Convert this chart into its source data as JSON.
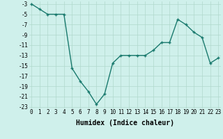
{
  "xlabel": "Humidex (Indice chaleur)",
  "x": [
    0,
    1,
    2,
    3,
    4,
    5,
    6,
    7,
    8,
    9,
    10,
    11,
    12,
    13,
    14,
    15,
    16,
    17,
    18,
    19,
    20,
    21,
    22,
    23
  ],
  "y": [
    -3,
    -4,
    -5,
    -5,
    -5,
    -15.5,
    -18,
    -20,
    -22.5,
    -20.5,
    -14.5,
    -13,
    -13,
    -13,
    -13,
    -12,
    -10.5,
    -10.5,
    -6,
    -7,
    -8.5,
    -9.5,
    -14.5,
    -13.5
  ],
  "line_color": "#1a7a6e",
  "marker": "+",
  "marker_size": 3,
  "background_color": "#cff0eb",
  "grid_color": "#b0d8cc",
  "ylim": [
    -23,
    -3
  ],
  "xlim": [
    0,
    23
  ],
  "yticks": [
    -3,
    -5,
    -7,
    -9,
    -11,
    -13,
    -15,
    -17,
    -19,
    -21,
    -23
  ],
  "xticks": [
    0,
    1,
    2,
    3,
    4,
    5,
    6,
    7,
    8,
    9,
    10,
    11,
    12,
    13,
    14,
    15,
    16,
    17,
    18,
    19,
    20,
    21,
    22,
    23
  ],
  "tick_fontsize": 5.5,
  "xlabel_fontsize": 7,
  "line_width": 1.0
}
